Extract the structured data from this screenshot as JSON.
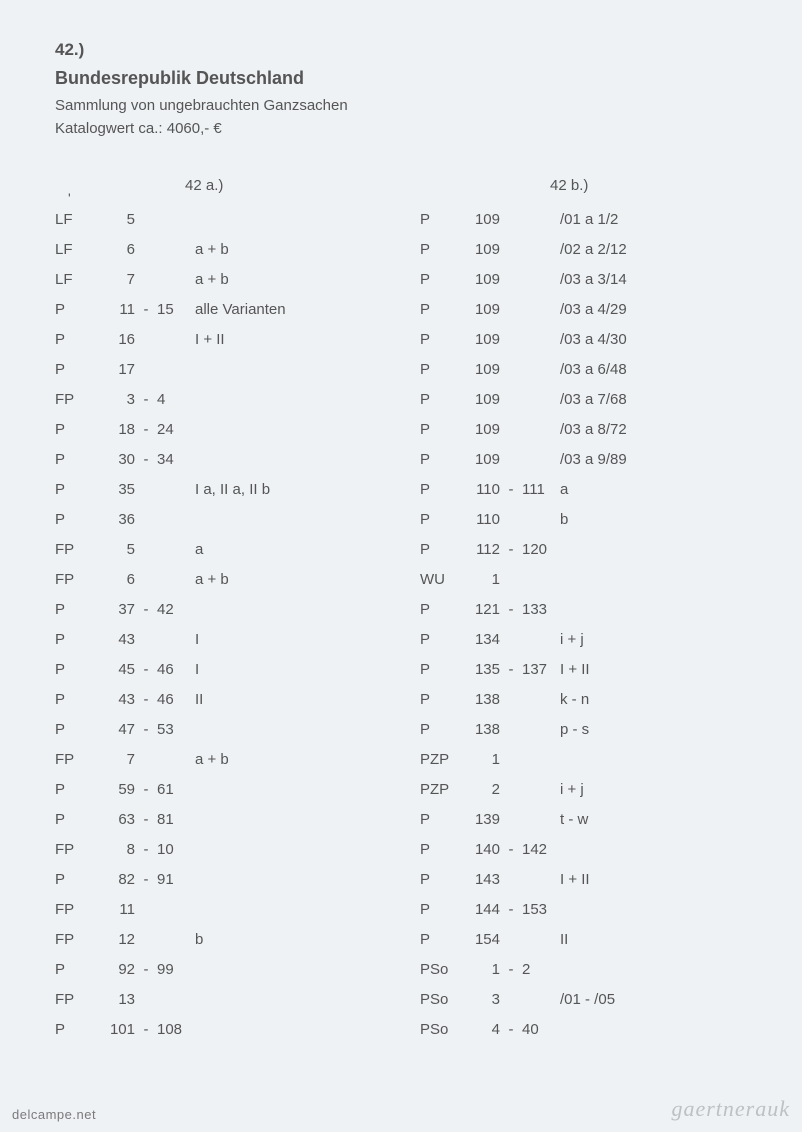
{
  "header": {
    "lot": "42.)",
    "title": "Bundesrepublik Deutschland",
    "subtitle": "Sammlung von ungebrauchten Ganzsachen",
    "catalog": "Katalogwert ca.: 4060,- €"
  },
  "left": {
    "heading": "42 a.)",
    "rows": [
      {
        "p": "LF",
        "n1": "5",
        "d": "",
        "n2": "",
        "note": ""
      },
      {
        "p": "LF",
        "n1": "6",
        "d": "",
        "n2": "",
        "note": "a  + b"
      },
      {
        "p": "LF",
        "n1": "7",
        "d": "",
        "n2": "",
        "note": "a  + b"
      },
      {
        "p": "P",
        "n1": "11",
        "d": "-",
        "n2": "15",
        "note": "alle Varianten"
      },
      {
        "p": "P",
        "n1": "16",
        "d": "",
        "n2": "",
        "note": "I  + II"
      },
      {
        "p": "P",
        "n1": "17",
        "d": "",
        "n2": "",
        "note": ""
      },
      {
        "p": "FP",
        "n1": "3",
        "d": "-",
        "n2": "4",
        "note": ""
      },
      {
        "p": "P",
        "n1": "18",
        "d": "-",
        "n2": "24",
        "note": ""
      },
      {
        "p": "P",
        "n1": "30",
        "d": "-",
        "n2": "34",
        "note": ""
      },
      {
        "p": "P",
        "n1": "35",
        "d": "",
        "n2": "",
        "note": "I a, II a, II b"
      },
      {
        "p": "P",
        "n1": "36",
        "d": "",
        "n2": "",
        "note": ""
      },
      {
        "p": "FP",
        "n1": "5",
        "d": "",
        "n2": "",
        "note": "a"
      },
      {
        "p": "FP",
        "n1": "6",
        "d": "",
        "n2": "",
        "note": "a  + b"
      },
      {
        "p": "P",
        "n1": "37",
        "d": "-",
        "n2": "42",
        "note": ""
      },
      {
        "p": "P",
        "n1": "43",
        "d": "",
        "n2": "",
        "note": "I"
      },
      {
        "p": "P",
        "n1": "45",
        "d": "-",
        "n2": "46",
        "note": "I"
      },
      {
        "p": "P",
        "n1": "43",
        "d": "-",
        "n2": "46",
        "note": "II"
      },
      {
        "p": "P",
        "n1": "47",
        "d": "-",
        "n2": "53",
        "note": ""
      },
      {
        "p": "FP",
        "n1": "7",
        "d": "",
        "n2": "",
        "note": "a  + b"
      },
      {
        "p": "P",
        "n1": "59",
        "d": "-",
        "n2": "61",
        "note": ""
      },
      {
        "p": "P",
        "n1": "63",
        "d": "-",
        "n2": "81",
        "note": ""
      },
      {
        "p": "FP",
        "n1": "8",
        "d": "-",
        "n2": "10",
        "note": ""
      },
      {
        "p": "P",
        "n1": "82",
        "d": "-",
        "n2": "91",
        "note": ""
      },
      {
        "p": "FP",
        "n1": "11",
        "d": "",
        "n2": "",
        "note": ""
      },
      {
        "p": "FP",
        "n1": "12",
        "d": "",
        "n2": "",
        "note": "b"
      },
      {
        "p": "P",
        "n1": "92",
        "d": "-",
        "n2": "99",
        "note": ""
      },
      {
        "p": "FP",
        "n1": "13",
        "d": "",
        "n2": "",
        "note": ""
      },
      {
        "p": "P",
        "n1": "101",
        "d": "-",
        "n2": "108",
        "note": ""
      }
    ]
  },
  "right": {
    "heading": "42 b.)",
    "rows": [
      {
        "p": "P",
        "n1": "109",
        "d": "",
        "n2": "",
        "note": "/01 a 1/2"
      },
      {
        "p": "P",
        "n1": "109",
        "d": "",
        "n2": "",
        "note": "/02 a 2/12"
      },
      {
        "p": "P",
        "n1": "109",
        "d": "",
        "n2": "",
        "note": "/03 a 3/14"
      },
      {
        "p": "P",
        "n1": "109",
        "d": "",
        "n2": "",
        "note": "/03 a 4/29"
      },
      {
        "p": "P",
        "n1": "109",
        "d": "",
        "n2": "",
        "note": "/03 a 4/30"
      },
      {
        "p": "P",
        "n1": "109",
        "d": "",
        "n2": "",
        "note": "/03 a 6/48"
      },
      {
        "p": "P",
        "n1": "109",
        "d": "",
        "n2": "",
        "note": "/03 a 7/68"
      },
      {
        "p": "P",
        "n1": "109",
        "d": "",
        "n2": "",
        "note": "/03 a 8/72"
      },
      {
        "p": "P",
        "n1": "109",
        "d": "",
        "n2": "",
        "note": "/03 a 9/89"
      },
      {
        "p": "P",
        "n1": "110",
        "d": "-",
        "n2": "111",
        "note": "a"
      },
      {
        "p": "P",
        "n1": "110",
        "d": "",
        "n2": "",
        "note": "b"
      },
      {
        "p": "P",
        "n1": "112",
        "d": "-",
        "n2": "120",
        "note": ""
      },
      {
        "p": "WU",
        "n1": "1",
        "d": "",
        "n2": "",
        "note": ""
      },
      {
        "p": "P",
        "n1": "121",
        "d": "-",
        "n2": "133",
        "note": ""
      },
      {
        "p": "P",
        "n1": "134",
        "d": "",
        "n2": "",
        "note": "i  + j"
      },
      {
        "p": "P",
        "n1": "135",
        "d": "-",
        "n2": "137",
        "note": "I  + II"
      },
      {
        "p": "P",
        "n1": "138",
        "d": "",
        "n2": "",
        "note": "k  - n"
      },
      {
        "p": "P",
        "n1": "138",
        "d": "",
        "n2": "",
        "note": "p  - s"
      },
      {
        "p": "PZP",
        "n1": "1",
        "d": "",
        "n2": "",
        "note": ""
      },
      {
        "p": "PZP",
        "n1": "2",
        "d": "",
        "n2": "",
        "note": "i  + j"
      },
      {
        "p": "P",
        "n1": "139",
        "d": "",
        "n2": "",
        "note": "t  - w"
      },
      {
        "p": "P",
        "n1": "140",
        "d": "-",
        "n2": "142",
        "note": ""
      },
      {
        "p": "P",
        "n1": "143",
        "d": "",
        "n2": "",
        "note": "I  + II"
      },
      {
        "p": "P",
        "n1": "144",
        "d": "-",
        "n2": "153",
        "note": ""
      },
      {
        "p": "P",
        "n1": "154",
        "d": "",
        "n2": "",
        "note": "II"
      },
      {
        "p": "PSo",
        "n1": "1",
        "d": "-",
        "n2": "2",
        "note": ""
      },
      {
        "p": "PSo",
        "n1": "3",
        "d": "",
        "n2": "",
        "note": "/01 - /05"
      },
      {
        "p": "PSo",
        "n1": "4",
        "d": "-",
        "n2": "40",
        "note": ""
      }
    ]
  },
  "footer": {
    "left": "delcampe.net",
    "right": "gaertnerauk"
  }
}
